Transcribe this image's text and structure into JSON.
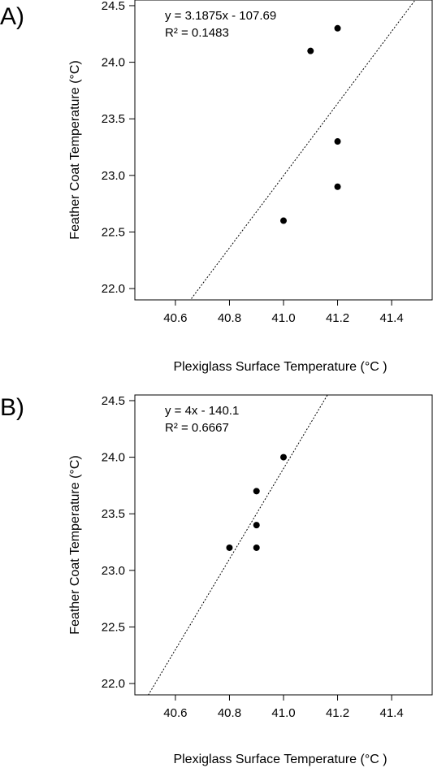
{
  "chart_data": [
    {
      "panel_label": "A)",
      "type": "scatter",
      "xlabel": "Plexiglass Surface Temperature (°C )",
      "ylabel": "Feather Coat Temperature (°C)",
      "xlim": [
        40.45,
        41.55
      ],
      "ylim": [
        21.9,
        24.55
      ],
      "xticks": [
        40.6,
        40.8,
        41.0,
        41.2,
        41.4
      ],
      "xtick_labels": [
        "40.6",
        "40.8",
        "41.0",
        "41.2",
        "41.4"
      ],
      "yticks": [
        22.0,
        22.5,
        23.0,
        23.5,
        24.0,
        24.5
      ],
      "ytick_labels": [
        "22.0",
        "22.5",
        "23.0",
        "23.5",
        "24.0",
        "24.5"
      ],
      "points": [
        {
          "x": 41.0,
          "y": 22.6
        },
        {
          "x": 41.1,
          "y": 24.1
        },
        {
          "x": 41.2,
          "y": 24.3
        },
        {
          "x": 41.2,
          "y": 23.3
        },
        {
          "x": 41.2,
          "y": 22.9
        }
      ],
      "trendline": {
        "slope": 3.1875,
        "intercept": -107.69,
        "style": "dotted"
      },
      "annotations": [
        "y = 3.1875x - 107.69",
        "R² = 0.1483"
      ],
      "grid": false
    },
    {
      "panel_label": "B)",
      "type": "scatter",
      "xlabel": "Plexiglass Surface Temperature (°C )",
      "ylabel": "Feather Coat Temperature (°C)",
      "xlim": [
        40.45,
        41.55
      ],
      "ylim": [
        21.9,
        24.55
      ],
      "xticks": [
        40.6,
        40.8,
        41.0,
        41.2,
        41.4
      ],
      "xtick_labels": [
        "40.6",
        "40.8",
        "41.0",
        "41.2",
        "41.4"
      ],
      "yticks": [
        22.0,
        22.5,
        23.0,
        23.5,
        24.0,
        24.5
      ],
      "ytick_labels": [
        "22.0",
        "22.5",
        "23.0",
        "23.5",
        "24.0",
        "24.5"
      ],
      "points": [
        {
          "x": 40.8,
          "y": 23.2
        },
        {
          "x": 40.9,
          "y": 23.2
        },
        {
          "x": 40.9,
          "y": 23.4
        },
        {
          "x": 40.9,
          "y": 23.7
        },
        {
          "x": 41.0,
          "y": 24.0
        }
      ],
      "trendline": {
        "slope": 4,
        "intercept": -140.1,
        "style": "dotted"
      },
      "annotations": [
        "y = 4x - 140.1",
        "R² = 0.6667"
      ],
      "grid": false
    }
  ]
}
